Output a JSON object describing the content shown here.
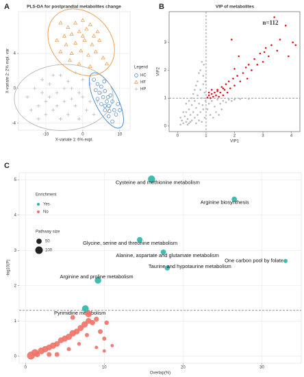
{
  "chart_data": [
    {
      "type": "scatter",
      "panel": "A",
      "title": "PLS-DA for postprandial metabolites change",
      "xlabel": "X-variate 1: 6% expl.",
      "ylabel": "X-variate 2: 2% expl. var",
      "xlim": [
        -17.4,
        12.8
      ],
      "ylim": [
        -4.8,
        8.8
      ],
      "xticks": [
        -10,
        0,
        10
      ],
      "yticks": [
        -4,
        0,
        4
      ],
      "grid": true,
      "ellipses": true,
      "legend_title": "Legend",
      "series": [
        {
          "name": "HC",
          "color": "#3a7fc1",
          "marker": "circle",
          "x": [
            3,
            4,
            5,
            4.5,
            5.5,
            6,
            6.5,
            7,
            5,
            6,
            7.5,
            8,
            8.5,
            9,
            7,
            6,
            4,
            3.5,
            9.5,
            10,
            8,
            6.8,
            5.8,
            7.2
          ],
          "values": [
            1,
            0.5,
            0.2,
            -0.5,
            -1,
            -0.3,
            -1.5,
            -2,
            -1.8,
            -2.5,
            -0.8,
            -1.5,
            -2.5,
            -3,
            -3.2,
            -2,
            -1.2,
            -0.2,
            -1.8,
            -2.5,
            -3.8,
            -1,
            0.8,
            -2.6
          ]
        },
        {
          "name": "HF",
          "color": "#f0923a",
          "marker": "triangle",
          "x": [
            -6,
            -4,
            -2,
            0,
            2,
            -5,
            -3,
            -1,
            1,
            3,
            -7,
            -4.5,
            -2,
            0.5,
            2.5,
            4.5,
            -6,
            -3,
            -0.5,
            1.5,
            3.5,
            5.5,
            -1,
            2,
            6.5,
            -3.5,
            0,
            4
          ],
          "values": [
            7.5,
            7,
            7.5,
            7.8,
            7.3,
            6,
            6.2,
            6.5,
            6.8,
            6,
            5.5,
            5,
            5.2,
            5.5,
            5,
            5.5,
            4.2,
            4,
            4.3,
            3.8,
            4.2,
            3.5,
            2.8,
            2.5,
            2.8,
            3.2,
            6,
            6.5
          ]
        },
        {
          "name": "HP",
          "color": "#b5b5b5",
          "marker": "plus",
          "x": [
            -15,
            -13,
            -12,
            -11,
            -10,
            -9,
            -8,
            -7,
            -6,
            -5,
            -4,
            -3,
            -2,
            -1,
            0,
            1,
            2,
            3,
            4,
            -14,
            -12,
            -10,
            -8,
            -6,
            -4,
            -2,
            0,
            -9,
            -5,
            -1,
            2,
            5,
            -7,
            -3,
            -11
          ],
          "values": [
            -1,
            0,
            -2,
            1,
            -1.5,
            0.5,
            -2.5,
            -0.5,
            1.5,
            -1.5,
            -3,
            0,
            -2,
            -3.5,
            -1,
            -2.5,
            0.5,
            -3,
            -1.5,
            -2.5,
            -3.5,
            -3,
            1.5,
            -3.5,
            0.8,
            1.8,
            1,
            -1,
            0,
            -0.5,
            -1.5,
            -0.5,
            -2,
            -1.2,
            -0.5
          ]
        }
      ]
    },
    {
      "type": "scatter",
      "panel": "B",
      "title": "VIP of metabolites",
      "xlabel": "VIP1",
      "ylabel": "VIP2",
      "annotation": "n=112",
      "annotation_color": "#e0141b",
      "xlim": [
        -0.3,
        4.3
      ],
      "ylim": [
        -0.2,
        4.1
      ],
      "xticks": [
        0,
        1,
        2,
        3,
        4
      ],
      "yticks": [
        0,
        1,
        2,
        3
      ],
      "grid": false,
      "thresholds": {
        "x": 1,
        "y": 1
      },
      "series": [
        {
          "color": "#e0141b",
          "marker": "dot",
          "x": [
            1.05,
            1.1,
            1.15,
            1.2,
            1.25,
            1.3,
            1.35,
            1.4,
            1.45,
            1.5,
            1.55,
            1.6,
            1.65,
            1.7,
            1.75,
            1.8,
            1.85,
            1.9,
            1.95,
            2.0,
            2.1,
            2.15,
            2.2,
            2.3,
            2.4,
            2.45,
            2.5,
            2.6,
            2.7,
            2.8,
            2.9,
            3.0,
            3.1,
            3.2,
            3.3,
            3.4,
            3.5,
            3.6,
            3.8,
            3.9,
            4.05,
            4.15,
            1.2,
            1.4,
            1.6,
            1.1,
            2.0,
            3.05
          ],
          "values": [
            1.02,
            1.1,
            1.0,
            1.15,
            1.05,
            1.2,
            1.1,
            1.3,
            1.05,
            1.2,
            1.4,
            1.1,
            1.3,
            1.5,
            1.2,
            1.6,
            1.35,
            3.1,
            1.7,
            1.45,
            1.8,
            2.5,
            1.6,
            1.9,
            2.1,
            1.7,
            2.2,
            2.0,
            2.4,
            2.2,
            2.6,
            2.3,
            2.8,
            2.5,
            2.9,
            3.9,
            2.7,
            3.1,
            3.6,
            2.5,
            3.0,
            2.9,
            1.3,
            1.25,
            1.35,
            1.2,
            2.05,
            2.65
          ]
        },
        {
          "color": "#b9b9b9",
          "marker": "dot",
          "x": [
            0.1,
            0.15,
            0.2,
            0.25,
            0.3,
            0.3,
            0.35,
            0.4,
            0.4,
            0.45,
            0.5,
            0.5,
            0.55,
            0.6,
            0.6,
            0.65,
            0.7,
            0.7,
            0.75,
            0.8,
            0.8,
            0.85,
            0.9,
            0.9,
            0.95,
            0.95,
            0.5,
            0.6,
            0.7,
            0.75,
            0.85,
            0.8,
            0.9,
            0.65,
            0.4,
            0.3,
            0.2,
            0.55,
            0.45,
            0.65,
            0.85,
            0.1,
            1.05,
            1.1,
            1.15,
            1.2,
            1.3,
            1.35,
            1.4,
            1.5,
            1.55,
            1.6,
            1.7,
            1.8,
            1.9,
            2.0,
            2.2,
            2.5,
            1.25,
            1.45,
            0.98,
            0.92,
            0.97,
            0.88,
            0.35,
            0.75
          ],
          "values": [
            0.05,
            0.2,
            0.1,
            0.35,
            0.15,
            0.5,
            0.25,
            0.6,
            0.1,
            0.4,
            0.75,
            0.2,
            0.5,
            0.9,
            0.3,
            0.65,
            1.1,
            0.4,
            0.8,
            1.3,
            0.5,
            1.0,
            1.5,
            0.6,
            1.2,
            0.3,
            1.0,
            1.3,
            1.6,
            1.9,
            2.3,
            2.0,
            1.8,
            1.45,
            0.9,
            0.8,
            0.5,
            1.15,
            0.15,
            0.1,
            0.15,
            0.3,
            0.6,
            0.8,
            0.4,
            0.9,
            0.7,
            0.5,
            0.95,
            0.8,
            0.6,
            0.9,
            0.85,
            0.95,
            0.9,
            0.95,
            0.97,
            0.98,
            0.3,
            0.4,
            0.9,
            2.2,
            1.6,
            0.75,
            0.05,
            0.2
          ]
        }
      ]
    },
    {
      "type": "bubble",
      "panel": "C",
      "xlabel": "Overlap(%)",
      "ylabel": "-log10(P)",
      "xlim": [
        -0.8,
        35
      ],
      "ylim": [
        -0.2,
        5.2
      ],
      "xticks": [
        0,
        10,
        20,
        30
      ],
      "yticks": [
        0,
        1,
        2,
        3,
        4,
        5
      ],
      "grid": true,
      "threshold_y": 1.3,
      "legend_title": "Enrichment",
      "size_legend": {
        "title": "Pathway size",
        "values": [
          50,
          100
        ]
      },
      "series": [
        {
          "name": "Yes",
          "color": "#2bb5a8",
          "x": [
            16,
            26.5,
            14.5,
            17.5,
            33,
            18,
            9.2,
            7.6
          ],
          "values": [
            5.02,
            4.45,
            3.3,
            2.95,
            2.7,
            2.5,
            2.15,
            1.35
          ],
          "sizes": [
            90,
            50,
            55,
            50,
            30,
            45,
            75,
            80
          ],
          "labels": [
            "Cysteine and methionine metabolism",
            "Arginine biosynthesis",
            "Glycine, serine and threonine metabolism",
            "Alanine, aspartate and glutamate metabolism",
            "One carbon pool by folate",
            "Taurine and hypotaurine metabolism",
            "Arginine and proline metabolism",
            "Pyrimidine metabolism"
          ]
        },
        {
          "name": "No",
          "color": "#f07167",
          "x": [
            0.7,
            1.2,
            2,
            2.5,
            3,
            3.5,
            4,
            4.5,
            5,
            5.5,
            6,
            6.5,
            7,
            7.5,
            8,
            8.5,
            9,
            8,
            9.5,
            10,
            10.3,
            7.8,
            6.8,
            9,
            10,
            5.5,
            4,
            3,
            1.5,
            6,
            11
          ],
          "values": [
            0.02,
            0.1,
            0.15,
            0.2,
            0.25,
            0.3,
            0.35,
            0.45,
            0.5,
            0.55,
            0.65,
            0.7,
            0.8,
            0.9,
            1.0,
            0.95,
            1.05,
            1.2,
            0.7,
            0.5,
            0.95,
            0.6,
            0.35,
            0.25,
            0.15,
            0.2,
            0.05,
            0.05,
            0.05,
            1.1,
            0.3
          ],
          "sizes": [
            110,
            90,
            80,
            70,
            60,
            70,
            55,
            60,
            65,
            70,
            75,
            60,
            65,
            70,
            60,
            50,
            45,
            80,
            40,
            30,
            35,
            30,
            25,
            20,
            20,
            30,
            40,
            40,
            50,
            40,
            20
          ]
        }
      ]
    }
  ]
}
